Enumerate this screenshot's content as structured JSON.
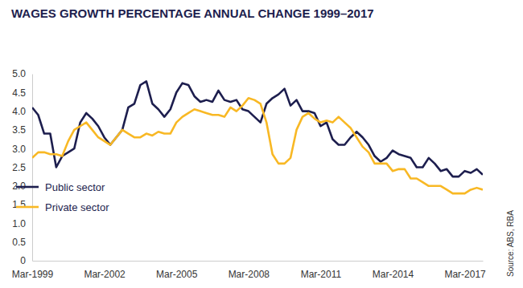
{
  "chart_data": {
    "type": "line",
    "title": "WAGES GROWTH PERCENTAGE ANNUAL CHANGE 1999–2017",
    "annotations": [
      "Source: ABS, RBA"
    ],
    "categories": [
      "Mar-1999",
      null,
      null,
      null,
      null,
      null,
      null,
      null,
      null,
      null,
      null,
      null,
      "Mar-2002",
      null,
      null,
      null,
      null,
      null,
      null,
      null,
      null,
      null,
      null,
      null,
      "Mar-2005",
      null,
      null,
      null,
      null,
      null,
      null,
      null,
      null,
      null,
      null,
      null,
      "Mar-2008",
      null,
      null,
      null,
      null,
      null,
      null,
      null,
      null,
      null,
      null,
      null,
      "Mar-2011",
      null,
      null,
      null,
      null,
      null,
      null,
      null,
      null,
      null,
      null,
      null,
      "Mar-2014",
      null,
      null,
      null,
      null,
      null,
      null,
      null,
      null,
      null,
      null,
      null,
      "Mar-2017",
      null,
      null,
      null
    ],
    "series": [
      {
        "name": "Public sector",
        "color": "#1d1e4e",
        "values": [
          4.1,
          3.9,
          3.4,
          3.4,
          2.5,
          2.8,
          2.9,
          3.0,
          3.7,
          3.95,
          3.8,
          3.6,
          3.3,
          3.1,
          3.3,
          3.5,
          4.1,
          4.2,
          4.7,
          4.8,
          4.2,
          4.05,
          3.85,
          4.05,
          4.5,
          4.75,
          4.7,
          4.4,
          4.25,
          4.3,
          4.25,
          4.55,
          4.3,
          4.25,
          4.3,
          4.05,
          4.0,
          3.85,
          3.7,
          4.2,
          4.35,
          4.45,
          4.6,
          4.15,
          4.3,
          4.0,
          4.0,
          3.95,
          3.6,
          3.7,
          3.25,
          3.1,
          3.1,
          3.3,
          3.45,
          3.3,
          3.1,
          2.8,
          2.65,
          2.75,
          2.95,
          2.85,
          2.8,
          2.75,
          2.5,
          2.5,
          2.75,
          2.6,
          2.4,
          2.45,
          2.25,
          2.25,
          2.4,
          2.35,
          2.45,
          2.3
        ]
      },
      {
        "name": "Private sector",
        "color": "#f8b824",
        "values": [
          2.75,
          2.9,
          2.9,
          2.85,
          2.85,
          2.8,
          3.2,
          3.5,
          3.6,
          3.7,
          3.5,
          3.3,
          3.2,
          3.1,
          3.3,
          3.5,
          3.4,
          3.3,
          3.3,
          3.4,
          3.35,
          3.45,
          3.4,
          3.4,
          3.7,
          3.85,
          3.95,
          4.05,
          4.0,
          3.95,
          3.9,
          3.9,
          3.85,
          4.1,
          4.0,
          4.15,
          4.35,
          4.3,
          4.2,
          3.7,
          2.85,
          2.6,
          2.6,
          2.75,
          3.5,
          3.85,
          3.95,
          3.8,
          3.7,
          3.75,
          3.7,
          3.85,
          3.7,
          3.55,
          3.3,
          3.05,
          2.9,
          2.6,
          2.6,
          2.6,
          2.4,
          2.45,
          2.45,
          2.2,
          2.2,
          2.1,
          2.0,
          2.0,
          2.0,
          1.9,
          1.8,
          1.8,
          1.8,
          1.9,
          1.95,
          1.9
        ]
      }
    ],
    "ylim": [
      0,
      5
    ],
    "yticks": [
      0,
      0.5,
      {
        "value": 1,
        "label": "1.0"
      },
      1.5,
      {
        "value": 2,
        "label": "2.0"
      },
      2.5,
      {
        "value": 3,
        "label": "3.0"
      },
      3.5,
      {
        "value": 4,
        "label": "4.0"
      },
      4.5,
      {
        "value": 5,
        "label": "5.0"
      }
    ],
    "grid": false,
    "legend": "lower-left"
  }
}
